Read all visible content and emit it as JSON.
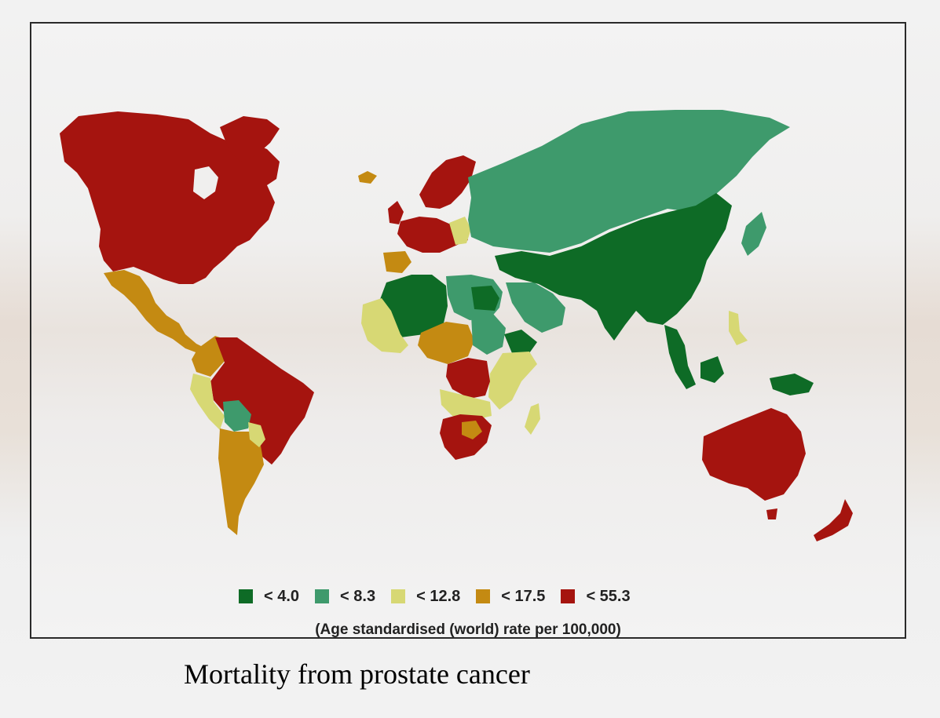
{
  "legend": {
    "items": [
      {
        "label": "< 4.0",
        "color": "#0e6b26"
      },
      {
        "label": "< 8.3",
        "color": "#3e9a6c"
      },
      {
        "label": "< 12.8",
        "color": "#d7d874"
      },
      {
        "label": "< 17.5",
        "color": "#c48a12"
      },
      {
        "label": "< 55.3",
        "color": "#a5140f"
      }
    ],
    "caption": "(Age standardised (world) rate per 100,000)"
  },
  "title": "Mortality from prostate cancer"
}
